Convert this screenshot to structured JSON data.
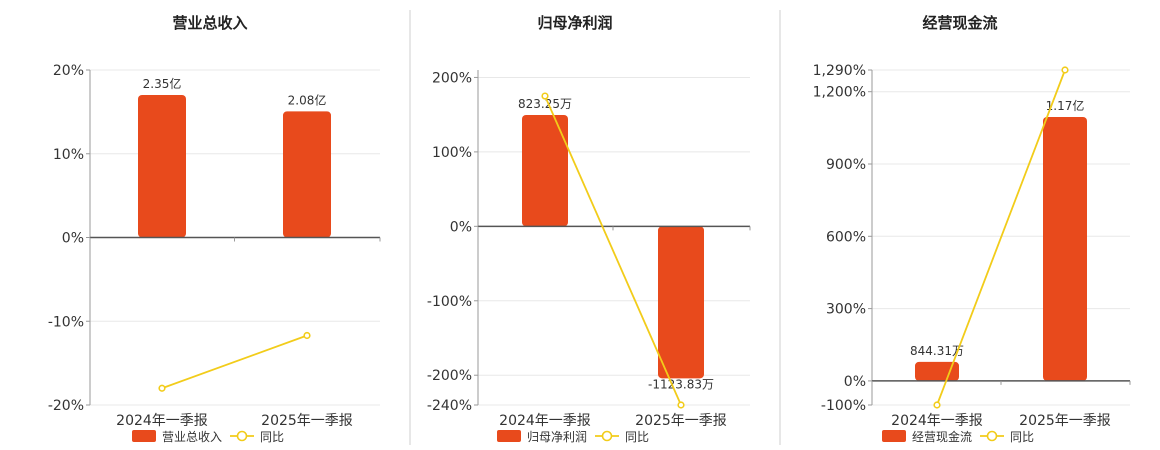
{
  "legend_pct_label": "同比",
  "chart_data": [
    {
      "type": "bar",
      "title": "营业总收入",
      "categories": [
        "2024年一季报",
        "2025年一季报"
      ],
      "bar_series_name": "营业总收入",
      "bar_values": [
        2.35,
        2.08
      ],
      "bar_unit": "亿",
      "bar_labels": [
        "2.35亿",
        "2.08亿"
      ],
      "pct_series_name": "同比",
      "pct_values": [
        -18.0,
        -11.7
      ],
      "yticks": [
        "20%",
        "10%",
        "0%",
        "-10%",
        "-20%"
      ],
      "ylim_pct": [
        -20,
        20
      ],
      "bar_color": "#e84a1c",
      "line_color": "#f2cc1a"
    },
    {
      "type": "bar",
      "title": "归母净利润",
      "categories": [
        "2024年一季报",
        "2025年一季报"
      ],
      "bar_series_name": "归母净利润",
      "bar_values": [
        823.25,
        -1123.83
      ],
      "bar_unit": "万",
      "bar_labels": [
        "823.25万",
        "-1123.83万"
      ],
      "pct_series_name": "同比",
      "pct_values": [
        175.0,
        -240.0
      ],
      "yticks": [
        "200%",
        "100%",
        "0%",
        "-100%",
        "-200%",
        "-240%"
      ],
      "ylim_pct": [
        -240,
        210
      ],
      "bar_color": "#e84a1c",
      "line_color": "#f2cc1a"
    },
    {
      "type": "bar",
      "title": "经营现金流",
      "categories": [
        "2024年一季报",
        "2025年一季报"
      ],
      "bar_series_name": "经营现金流",
      "bar_values": [
        844.31,
        11700
      ],
      "bar_unit": "万",
      "bar_labels": [
        "844.31万",
        "1.17亿"
      ],
      "pct_series_name": "同比",
      "pct_values": [
        -100,
        1290
      ],
      "yticks": [
        "1,290%",
        "1,200%",
        "900%",
        "600%",
        "300%",
        "0%",
        "-100%"
      ],
      "ylim_pct": [
        -100,
        1290
      ],
      "bar_color": "#e84a1c",
      "line_color": "#f2cc1a"
    }
  ]
}
